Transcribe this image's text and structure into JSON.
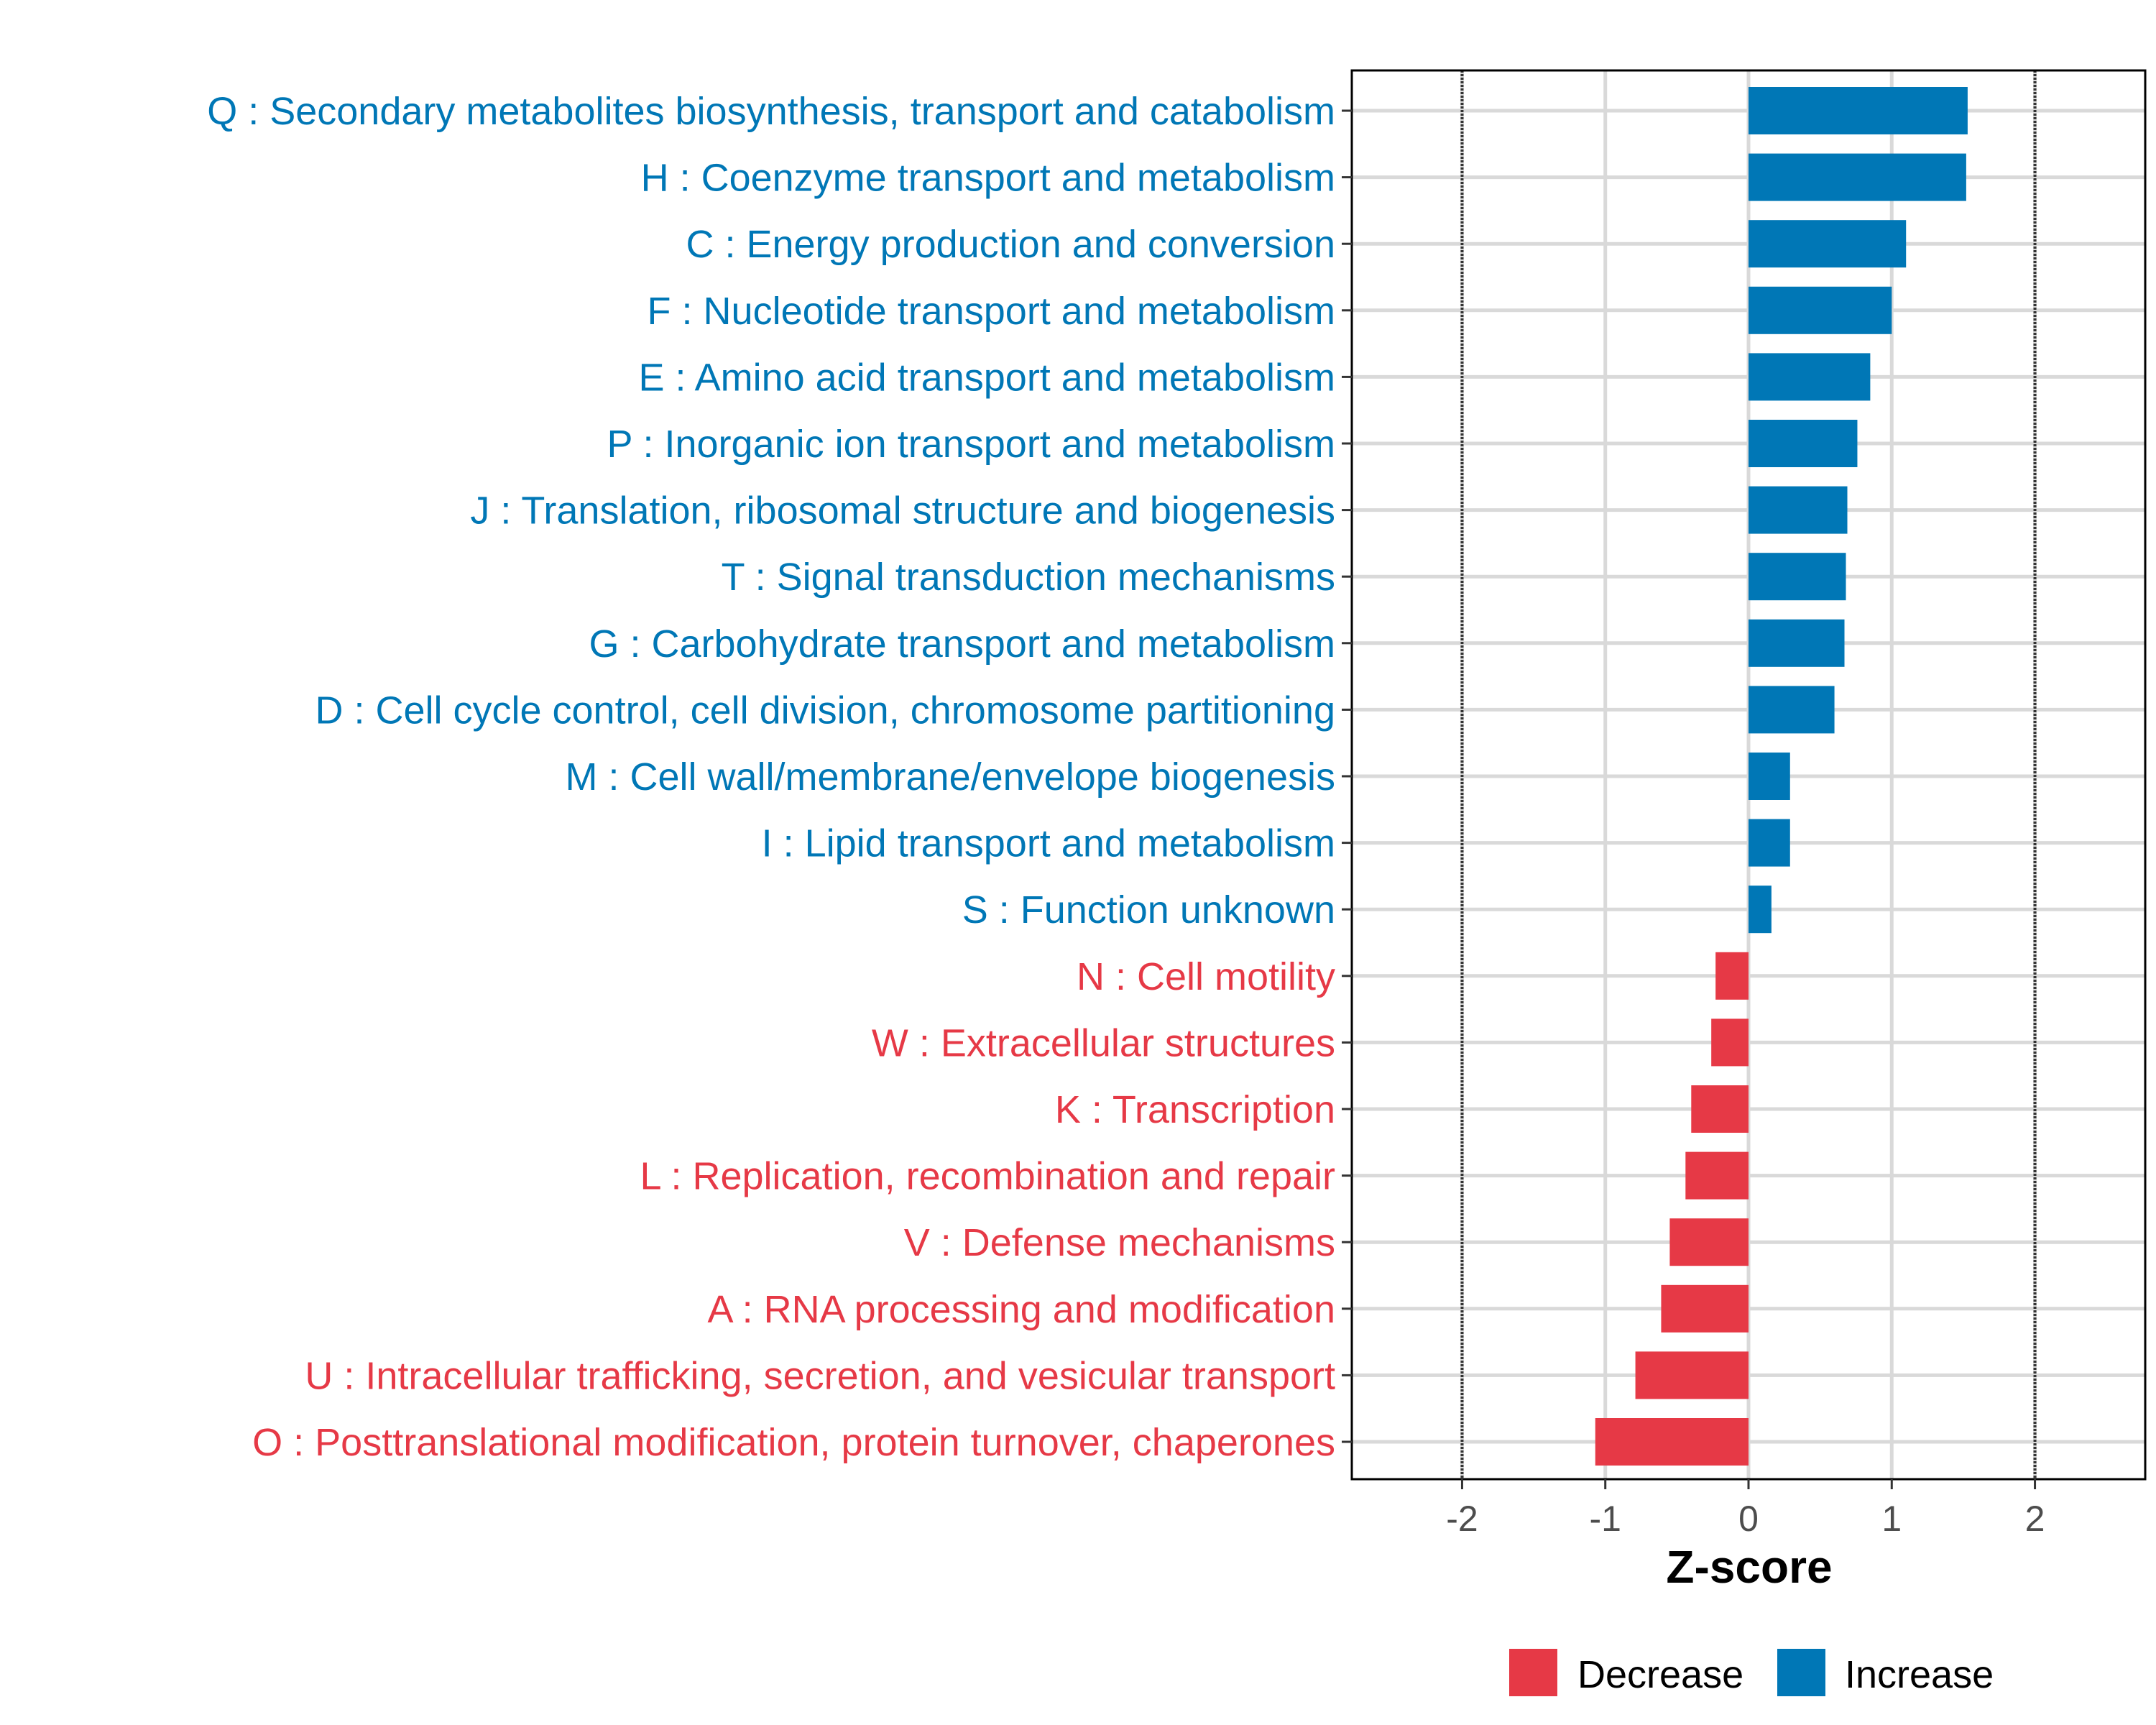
{
  "chart_data": {
    "type": "bar",
    "orientation": "horizontal",
    "title": "",
    "xlabel": "Z-score",
    "ylabel": "",
    "xlim": [
      -2.77,
      2.77
    ],
    "xticks": [
      -2,
      -1,
      0,
      1,
      2
    ],
    "xtick_labels": [
      "-2",
      "-1",
      "0",
      "1",
      "2"
    ],
    "reference_lines": [
      -2,
      2
    ],
    "grid": true,
    "categories": [
      "Q : Secondary metabolites biosynthesis, transport and catabolism",
      "H : Coenzyme transport and metabolism",
      "C : Energy production and conversion",
      "F : Nucleotide transport and metabolism",
      "E : Amino acid transport and metabolism",
      "P : Inorganic ion transport and metabolism",
      "J : Translation, ribosomal structure and biogenesis",
      "T : Signal transduction mechanisms",
      "G : Carbohydrate transport and metabolism",
      "D : Cell cycle control, cell division, chromosome partitioning",
      "M : Cell wall/membrane/envelope biogenesis",
      "I : Lipid transport and metabolism",
      "S : Function unknown",
      "N : Cell motility",
      "W : Extracellular structures",
      "K : Transcription",
      "L : Replication, recombination and repair",
      "V : Defense mechanisms",
      "A : RNA processing and modification",
      "U : Intracellular trafficking, secretion, and vesicular transport",
      "O : Posttranslational modification, protein turnover, chaperones"
    ],
    "values": [
      1.53,
      1.52,
      1.1,
      1.0,
      0.85,
      0.76,
      0.69,
      0.68,
      0.67,
      0.6,
      0.29,
      0.29,
      0.16,
      -0.23,
      -0.26,
      -0.4,
      -0.44,
      -0.55,
      -0.61,
      -0.79,
      -1.07
    ],
    "legend": {
      "placement": "bottom",
      "entries": [
        {
          "label": "Decrease",
          "color": "#E63946"
        },
        {
          "label": "Increase",
          "color": "#0077B6"
        }
      ]
    },
    "colors": {
      "increase": "#0077B6",
      "decrease": "#E63946",
      "grid": "#D9D9D9",
      "axis_text": "#4D4D4D"
    }
  }
}
